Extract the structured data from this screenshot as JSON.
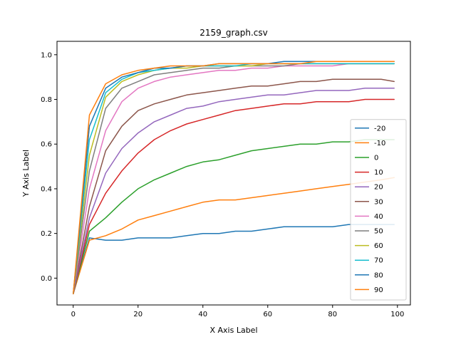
{
  "chart_data": {
    "type": "line",
    "title": "2159_graph.csv",
    "xlabel": "X Axis Label",
    "ylabel": "Y Axis Label",
    "xlim": [
      -5,
      104
    ],
    "ylim": [
      -0.12,
      1.06
    ],
    "x_ticks": [
      0,
      20,
      40,
      60,
      80,
      100
    ],
    "y_ticks": [
      0.0,
      0.2,
      0.4,
      0.6,
      0.8,
      1.0
    ],
    "x_tick_labels": [
      "0",
      "20",
      "40",
      "60",
      "80",
      "100"
    ],
    "y_tick_labels": [
      "0.0",
      "0.2",
      "0.4",
      "0.6",
      "0.8",
      "1.0"
    ],
    "x": [
      0,
      5,
      10,
      15,
      20,
      25,
      30,
      35,
      40,
      45,
      50,
      55,
      60,
      65,
      70,
      75,
      80,
      85,
      90,
      95,
      99
    ],
    "legend": {
      "position": "right",
      "entries": [
        "-20",
        "-10",
        "0",
        "10",
        "20",
        "30",
        "40",
        "50",
        "60",
        "70",
        "80",
        "90"
      ]
    },
    "grid": false,
    "series": [
      {
        "name": "-20",
        "color": "#1f77b4",
        "values": [
          -0.07,
          0.18,
          0.17,
          0.17,
          0.18,
          0.18,
          0.18,
          0.19,
          0.2,
          0.2,
          0.21,
          0.21,
          0.22,
          0.23,
          0.23,
          0.23,
          0.23,
          0.24,
          0.24,
          0.24,
          0.24
        ]
      },
      {
        "name": "-10",
        "color": "#ff7f0e",
        "values": [
          -0.07,
          0.17,
          0.19,
          0.22,
          0.26,
          0.28,
          0.3,
          0.32,
          0.34,
          0.35,
          0.35,
          0.36,
          0.37,
          0.38,
          0.39,
          0.4,
          0.41,
          0.42,
          0.43,
          0.44,
          0.45
        ]
      },
      {
        "name": "0",
        "color": "#2ca02c",
        "values": [
          -0.07,
          0.21,
          0.27,
          0.34,
          0.4,
          0.44,
          0.47,
          0.5,
          0.52,
          0.53,
          0.55,
          0.57,
          0.58,
          0.59,
          0.6,
          0.6,
          0.61,
          0.61,
          0.62,
          0.62,
          0.62
        ]
      },
      {
        "name": "10",
        "color": "#d62728",
        "values": [
          -0.07,
          0.24,
          0.38,
          0.48,
          0.56,
          0.62,
          0.66,
          0.69,
          0.71,
          0.73,
          0.75,
          0.76,
          0.77,
          0.78,
          0.78,
          0.79,
          0.79,
          0.79,
          0.8,
          0.8,
          0.8
        ]
      },
      {
        "name": "20",
        "color": "#9467bd",
        "values": [
          -0.07,
          0.27,
          0.47,
          0.58,
          0.65,
          0.7,
          0.73,
          0.76,
          0.77,
          0.79,
          0.8,
          0.81,
          0.82,
          0.82,
          0.83,
          0.84,
          0.84,
          0.84,
          0.85,
          0.85,
          0.85
        ]
      },
      {
        "name": "30",
        "color": "#8c564b",
        "values": [
          -0.07,
          0.32,
          0.57,
          0.68,
          0.75,
          0.78,
          0.8,
          0.82,
          0.83,
          0.84,
          0.85,
          0.86,
          0.86,
          0.87,
          0.88,
          0.88,
          0.89,
          0.89,
          0.89,
          0.89,
          0.88
        ]
      },
      {
        "name": "40",
        "color": "#e377c2",
        "values": [
          -0.07,
          0.4,
          0.66,
          0.79,
          0.85,
          0.88,
          0.9,
          0.91,
          0.92,
          0.93,
          0.93,
          0.94,
          0.94,
          0.95,
          0.95,
          0.95,
          0.95,
          0.96,
          0.96,
          0.96,
          0.96
        ]
      },
      {
        "name": "50",
        "color": "#7f7f7f",
        "values": [
          -0.07,
          0.48,
          0.76,
          0.85,
          0.88,
          0.91,
          0.92,
          0.93,
          0.94,
          0.94,
          0.95,
          0.95,
          0.95,
          0.95,
          0.96,
          0.96,
          0.96,
          0.96,
          0.96,
          0.96,
          0.96
        ]
      },
      {
        "name": "60",
        "color": "#bcbd22",
        "values": [
          -0.07,
          0.55,
          0.81,
          0.88,
          0.91,
          0.93,
          0.94,
          0.94,
          0.95,
          0.95,
          0.95,
          0.95,
          0.96,
          0.96,
          0.96,
          0.96,
          0.96,
          0.96,
          0.96,
          0.96,
          0.96
        ]
      },
      {
        "name": "70",
        "color": "#17becf",
        "values": [
          -0.07,
          0.62,
          0.83,
          0.89,
          0.92,
          0.93,
          0.94,
          0.95,
          0.95,
          0.95,
          0.95,
          0.96,
          0.96,
          0.96,
          0.96,
          0.96,
          0.96,
          0.96,
          0.96,
          0.96,
          0.96
        ]
      },
      {
        "name": "80",
        "color": "#1f77b4",
        "values": [
          -0.07,
          0.68,
          0.85,
          0.9,
          0.92,
          0.94,
          0.94,
          0.95,
          0.95,
          0.96,
          0.96,
          0.96,
          0.96,
          0.97,
          0.97,
          0.97,
          0.97,
          0.97,
          0.97,
          0.97,
          0.97
        ]
      },
      {
        "name": "90",
        "color": "#ff7f0e",
        "values": [
          -0.07,
          0.73,
          0.87,
          0.91,
          0.93,
          0.94,
          0.95,
          0.95,
          0.95,
          0.96,
          0.96,
          0.96,
          0.96,
          0.96,
          0.96,
          0.97,
          0.97,
          0.97,
          0.97,
          0.97,
          0.97
        ]
      }
    ]
  }
}
